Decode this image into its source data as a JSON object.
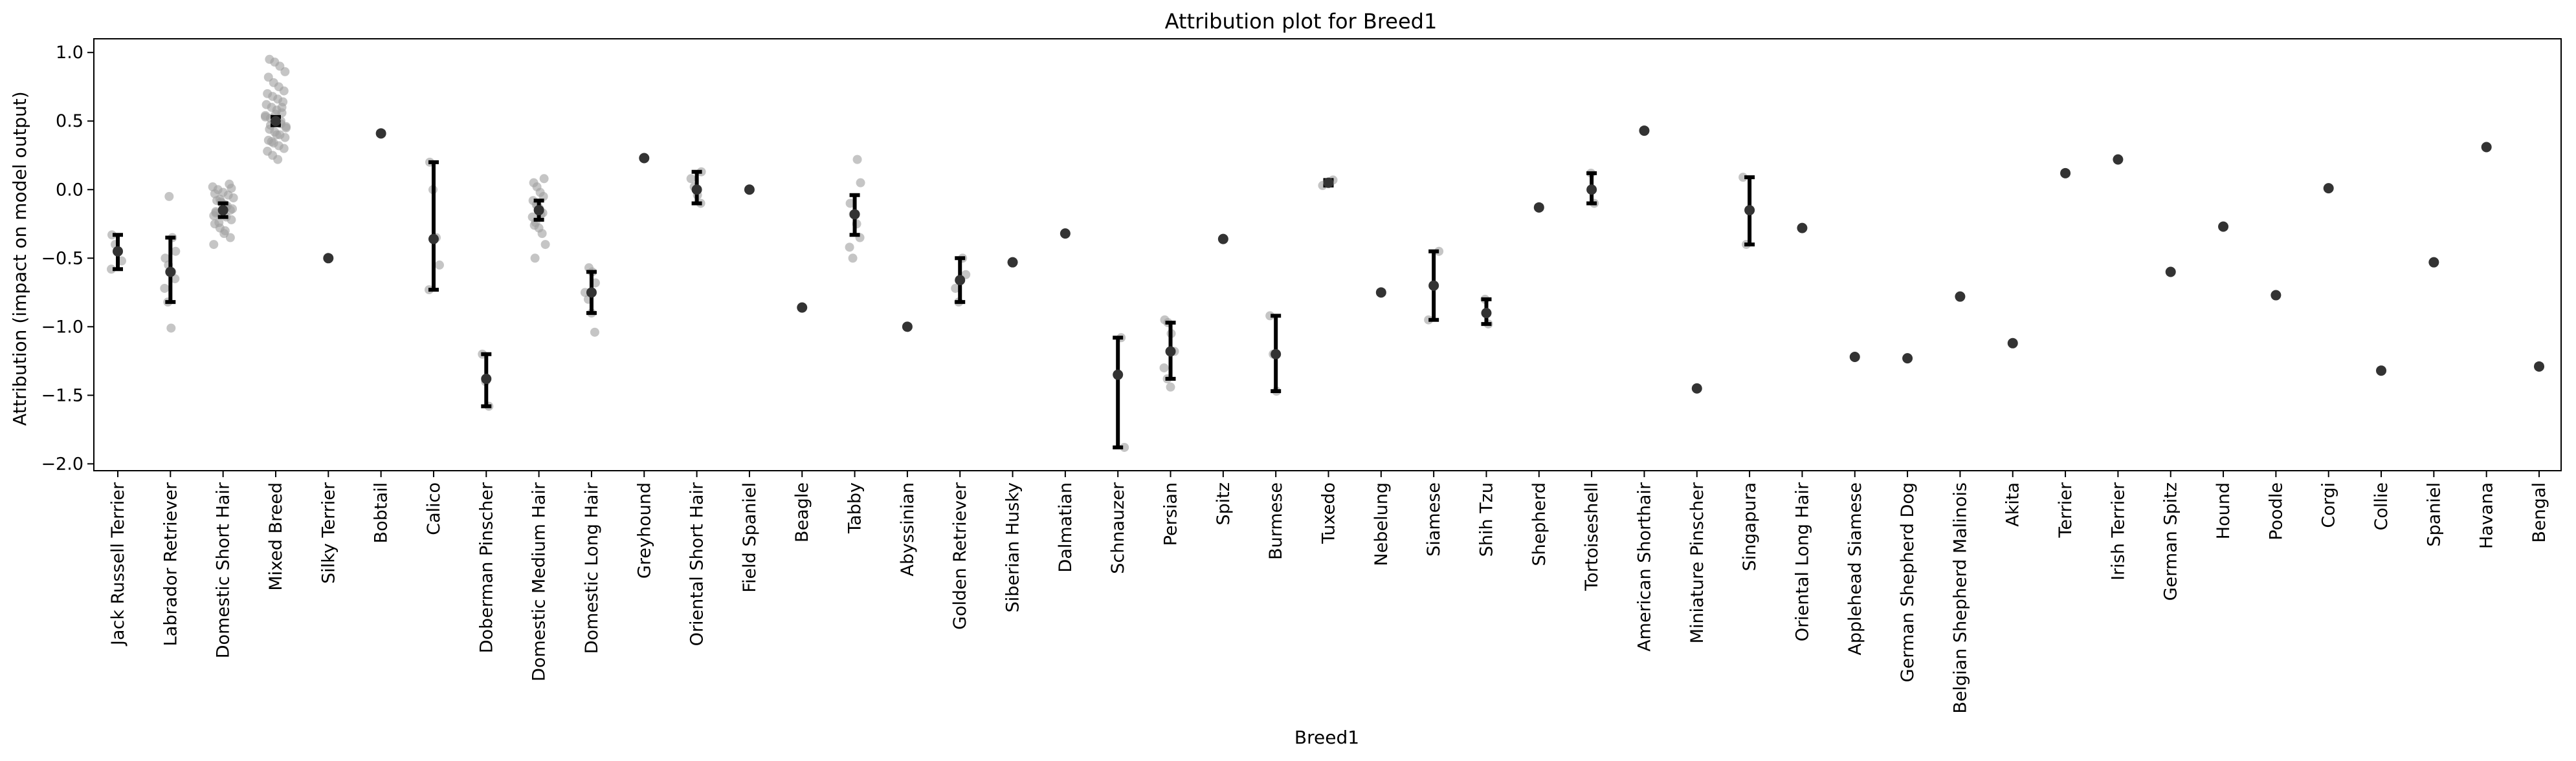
{
  "chart_data": {
    "type": "scatter",
    "title": "Attribution plot for Breed1",
    "xlabel": "Breed1",
    "ylabel": "Attribution (impact on model output)",
    "ylim": [
      -2.05,
      1.1
    ],
    "yticks": [
      1.0,
      0.5,
      0.0,
      -0.5,
      -1.0,
      -1.5,
      -2.0
    ],
    "ytick_labels": [
      "1.0",
      "0.5",
      "0.0",
      "−0.5",
      "−1.0",
      "−1.5",
      "−2.0"
    ],
    "grid": false,
    "legend": "none",
    "colors": {
      "points": "#9e9e9e",
      "mean": "#333333",
      "error_bar": "#000000"
    },
    "categories": [
      "Jack Russell Terrier",
      "Labrador Retriever",
      "Domestic Short Hair",
      "Mixed Breed",
      "Silky Terrier",
      "Bobtail",
      "Calico",
      "Doberman Pinscher",
      "Domestic Medium Hair",
      "Domestic Long Hair",
      "Greyhound",
      "Oriental Short Hair",
      "Field Spaniel",
      "Beagle",
      "Tabby",
      "Abyssinian",
      "Golden Retriever",
      "Siberian Husky",
      "Dalmatian",
      "Schnauzer",
      "Persian",
      "Spitz",
      "Burmese",
      "Tuxedo",
      "Nebelung",
      "Siamese",
      "Shih Tzu",
      "Shepherd",
      "Tortoiseshell",
      "American Shorthair",
      "Miniature Pinscher",
      "Singapura",
      "Oriental Long Hair",
      "Applehead Siamese",
      "German Shepherd Dog",
      "Belgian Shepherd Malinois",
      "Akita",
      "Terrier",
      "Irish Terrier",
      "German Spitz",
      "Hound",
      "Poodle",
      "Corgi",
      "Collie",
      "Spaniel",
      "Havana",
      "Bengal"
    ],
    "series": [
      {
        "name": "Jack Russell Terrier",
        "mean": -0.45,
        "ci": [
          -0.58,
          -0.33
        ],
        "points": [
          -0.58,
          -0.52,
          -0.45,
          -0.4,
          -0.33
        ]
      },
      {
        "name": "Labrador Retriever",
        "mean": -0.6,
        "ci": [
          -0.82,
          -0.35
        ],
        "points": [
          -1.01,
          -0.82,
          -0.72,
          -0.65,
          -0.6,
          -0.55,
          -0.5,
          -0.45,
          -0.35,
          -0.05
        ]
      },
      {
        "name": "Domestic Short Hair",
        "mean": -0.15,
        "ci": [
          -0.2,
          -0.1
        ],
        "points": [
          -0.4,
          -0.35,
          -0.3,
          -0.28,
          -0.25,
          -0.22,
          -0.2,
          -0.18,
          -0.16,
          -0.14,
          -0.12,
          -0.1,
          -0.08,
          -0.06,
          -0.04,
          -0.02,
          0.0,
          0.02,
          0.04,
          -0.32,
          -0.24,
          -0.19,
          -0.15,
          -0.11,
          -0.07,
          -0.03,
          0.01,
          -0.13,
          -0.09,
          -0.17
        ]
      },
      {
        "name": "Mixed Breed",
        "mean": 0.5,
        "ci": [
          0.47,
          0.53
        ],
        "points": [
          0.22,
          0.25,
          0.28,
          0.3,
          0.32,
          0.34,
          0.36,
          0.38,
          0.4,
          0.42,
          0.44,
          0.46,
          0.48,
          0.5,
          0.52,
          0.54,
          0.56,
          0.58,
          0.6,
          0.62,
          0.64,
          0.66,
          0.68,
          0.7,
          0.72,
          0.75,
          0.78,
          0.82,
          0.86,
          0.9,
          0.93,
          0.95,
          0.45,
          0.5,
          0.55,
          0.47,
          0.53,
          0.6,
          0.4,
          0.35
        ]
      },
      {
        "name": "Silky Terrier",
        "mean": -0.5,
        "ci": null,
        "points": [
          -0.5
        ]
      },
      {
        "name": "Bobtail",
        "mean": 0.41,
        "ci": null,
        "points": [
          0.41
        ]
      },
      {
        "name": "Calico",
        "mean": -0.36,
        "ci": [
          -0.73,
          0.2
        ],
        "points": [
          -0.73,
          -0.55,
          -0.35,
          0.0,
          0.2
        ]
      },
      {
        "name": "Doberman Pinscher",
        "mean": -1.38,
        "ci": [
          -1.58,
          -1.2
        ],
        "points": [
          -1.58,
          -1.4,
          -1.2
        ]
      },
      {
        "name": "Domestic Medium Hair",
        "mean": -0.15,
        "ci": [
          -0.22,
          -0.08
        ],
        "points": [
          -0.5,
          -0.4,
          -0.32,
          -0.28,
          -0.24,
          -0.2,
          -0.17,
          -0.14,
          -0.11,
          -0.08,
          -0.05,
          -0.02,
          0.02,
          0.05,
          0.08,
          -0.18,
          -0.12,
          -0.26
        ]
      },
      {
        "name": "Domestic Long Hair",
        "mean": -0.75,
        "ci": [
          -0.9,
          -0.6
        ],
        "points": [
          -1.04,
          -0.9,
          -0.8,
          -0.75,
          -0.68,
          -0.6,
          -0.57
        ]
      },
      {
        "name": "Greyhound",
        "mean": 0.23,
        "ci": null,
        "points": [
          0.23
        ]
      },
      {
        "name": "Oriental Short Hair",
        "mean": 0.0,
        "ci": [
          -0.1,
          0.13
        ],
        "points": [
          -0.1,
          -0.04,
          0.02,
          0.08,
          0.13
        ]
      },
      {
        "name": "Field Spaniel",
        "mean": 0.0,
        "ci": null,
        "points": [
          0.0
        ]
      },
      {
        "name": "Beagle",
        "mean": -0.86,
        "ci": null,
        "points": [
          -0.86
        ]
      },
      {
        "name": "Tabby",
        "mean": -0.18,
        "ci": [
          -0.33,
          -0.04
        ],
        "points": [
          -0.5,
          -0.42,
          -0.35,
          -0.25,
          -0.18,
          -0.1,
          0.05,
          0.22
        ]
      },
      {
        "name": "Abyssinian",
        "mean": -1.0,
        "ci": null,
        "points": [
          -1.0
        ]
      },
      {
        "name": "Golden Retriever",
        "mean": -0.66,
        "ci": [
          -0.82,
          -0.5
        ],
        "points": [
          -0.82,
          -0.72,
          -0.62,
          -0.5
        ]
      },
      {
        "name": "Siberian Husky",
        "mean": -0.53,
        "ci": null,
        "points": [
          -0.53
        ]
      },
      {
        "name": "Dalmatian",
        "mean": -0.32,
        "ci": null,
        "points": [
          -0.32
        ]
      },
      {
        "name": "Schnauzer",
        "mean": -1.35,
        "ci": [
          -1.88,
          -1.08
        ],
        "points": [
          -1.88,
          -1.08
        ]
      },
      {
        "name": "Persian",
        "mean": -1.18,
        "ci": [
          -1.38,
          -0.97
        ],
        "points": [
          -1.44,
          -1.38,
          -1.3,
          -1.18,
          -1.05,
          -0.97,
          -0.95
        ]
      },
      {
        "name": "Spitz",
        "mean": -0.36,
        "ci": null,
        "points": [
          -0.36
        ]
      },
      {
        "name": "Burmese",
        "mean": -1.2,
        "ci": [
          -1.47,
          -0.92
        ],
        "points": [
          -1.47,
          -1.2,
          -0.92
        ]
      },
      {
        "name": "Tuxedo",
        "mean": 0.05,
        "ci": [
          0.03,
          0.07
        ],
        "points": [
          0.03,
          0.07
        ]
      },
      {
        "name": "Nebelung",
        "mean": -0.75,
        "ci": null,
        "points": [
          -0.75
        ]
      },
      {
        "name": "Siamese",
        "mean": -0.7,
        "ci": [
          -0.95,
          -0.45
        ],
        "points": [
          -0.95,
          -0.45
        ]
      },
      {
        "name": "Shih Tzu",
        "mean": -0.9,
        "ci": [
          -0.98,
          -0.8
        ],
        "points": [
          -0.98,
          -0.8
        ]
      },
      {
        "name": "Shepherd",
        "mean": -0.13,
        "ci": null,
        "points": [
          -0.13
        ]
      },
      {
        "name": "Tortoiseshell",
        "mean": 0.0,
        "ci": [
          -0.1,
          0.12
        ],
        "points": [
          -0.1,
          0.12
        ]
      },
      {
        "name": "American Shorthair",
        "mean": 0.43,
        "ci": null,
        "points": [
          0.43
        ]
      },
      {
        "name": "Miniature Pinscher",
        "mean": -1.45,
        "ci": null,
        "points": [
          -1.45
        ]
      },
      {
        "name": "Singapura",
        "mean": -0.15,
        "ci": [
          -0.4,
          0.09
        ],
        "points": [
          -0.4,
          0.09
        ]
      },
      {
        "name": "Oriental Long Hair",
        "mean": -0.28,
        "ci": null,
        "points": [
          -0.28
        ]
      },
      {
        "name": "Applehead Siamese",
        "mean": -1.22,
        "ci": null,
        "points": [
          -1.22
        ]
      },
      {
        "name": "German Shepherd Dog",
        "mean": -1.23,
        "ci": null,
        "points": [
          -1.23
        ]
      },
      {
        "name": "Belgian Shepherd Malinois",
        "mean": -0.78,
        "ci": null,
        "points": [
          -0.78
        ]
      },
      {
        "name": "Akita",
        "mean": -1.12,
        "ci": null,
        "points": [
          -1.12
        ]
      },
      {
        "name": "Terrier",
        "mean": 0.12,
        "ci": null,
        "points": [
          0.12
        ]
      },
      {
        "name": "Irish Terrier",
        "mean": 0.22,
        "ci": null,
        "points": [
          0.22
        ]
      },
      {
        "name": "German Spitz",
        "mean": -0.6,
        "ci": null,
        "points": [
          -0.6
        ]
      },
      {
        "name": "Hound",
        "mean": -0.27,
        "ci": null,
        "points": [
          -0.27
        ]
      },
      {
        "name": "Poodle",
        "mean": -0.77,
        "ci": null,
        "points": [
          -0.77
        ]
      },
      {
        "name": "Corgi",
        "mean": 0.01,
        "ci": null,
        "points": [
          0.01
        ]
      },
      {
        "name": "Collie",
        "mean": -1.32,
        "ci": null,
        "points": [
          -1.32
        ]
      },
      {
        "name": "Spaniel",
        "mean": -0.53,
        "ci": null,
        "points": [
          -0.53
        ]
      },
      {
        "name": "Havana",
        "mean": 0.31,
        "ci": null,
        "points": [
          0.31
        ]
      },
      {
        "name": "Bengal",
        "mean": -1.29,
        "ci": null,
        "points": [
          -1.29
        ]
      }
    ]
  }
}
